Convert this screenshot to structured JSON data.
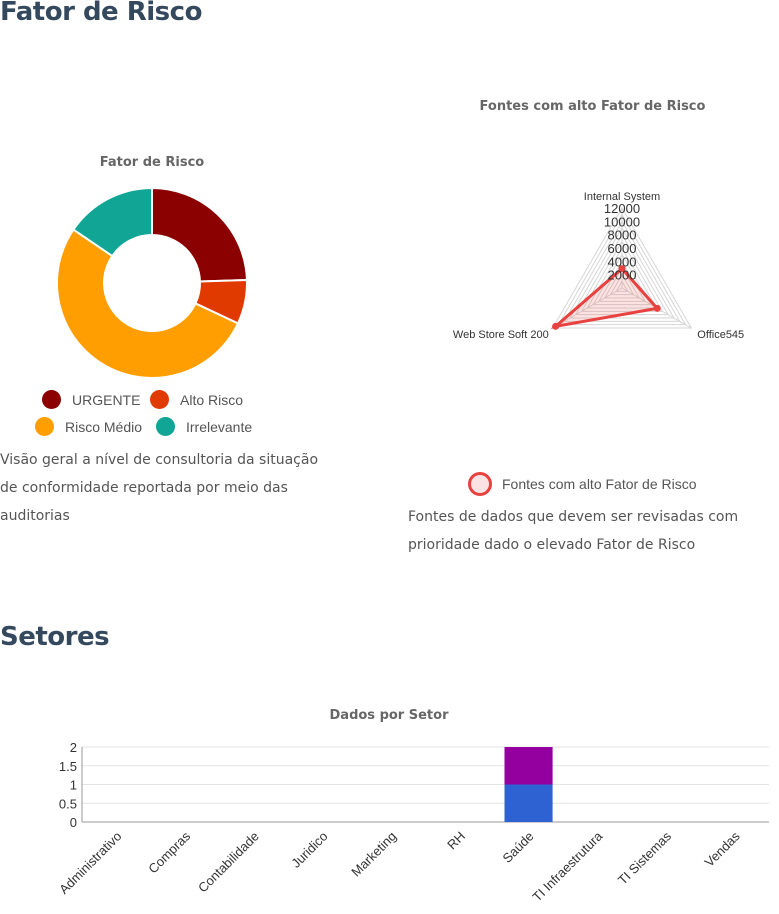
{
  "sections": {
    "risk_title": "Fator de Risco",
    "sectors_title": "Setores"
  },
  "donut": {
    "title": "Fator de Risco",
    "description": "Visão geral a nível de consultoria da situação de conformidade reportada por meio das auditorias",
    "legend": [
      {
        "label": "URGENTE",
        "color": "#8b0000"
      },
      {
        "label": "Alto Risco",
        "color": "#e03a00"
      },
      {
        "label": "Risco Médio",
        "color": "#ff9e00"
      },
      {
        "label": "Irrelevante",
        "color": "#11a596"
      }
    ]
  },
  "radar": {
    "title": "Fontes com alto Fator de Risco",
    "legend_label": "Fontes com alto Fator de Risco",
    "description": "Fontes de dados que devem ser revisadas com prioridade dado o elevado Fator de Risco"
  },
  "bars": {
    "title": "Dados por Setor"
  },
  "chart_data": [
    {
      "type": "pie",
      "title": "Fator de Risco",
      "categories": [
        "URGENTE",
        "Alto Risco",
        "Risco Médio",
        "Irrelevante"
      ],
      "values": [
        24.5,
        7.5,
        52.5,
        15.5
      ],
      "colors": [
        "#8b0000",
        "#e03a00",
        "#ff9e00",
        "#11a596"
      ]
    },
    {
      "type": "radar",
      "title": "Fontes com alto Fator de Risco",
      "categories": [
        "Internal System",
        "Office545",
        "Web Store Soft 200"
      ],
      "series": [
        {
          "name": "Fontes com alto Fator de Risco",
          "values": [
            2900,
            6100,
            11500
          ]
        }
      ],
      "ticks": [
        2000,
        4000,
        6000,
        8000,
        10000,
        12000
      ],
      "ylim": [
        0,
        12000
      ]
    },
    {
      "type": "bar",
      "stacked": true,
      "title": "Dados por Setor",
      "categories": [
        "Administrativo",
        "Compras",
        "Contabilidade",
        "Juridico",
        "Marketing",
        "RH",
        "Saúde",
        "TI Infraestrutura",
        "TI Sistemas",
        "Vendas"
      ],
      "series": [
        {
          "values": [
            0,
            0,
            0,
            0,
            0,
            0,
            1,
            0,
            0,
            0
          ],
          "color": "#2e62d2"
        },
        {
          "values": [
            0,
            0,
            0,
            0,
            0,
            0,
            1,
            0,
            0,
            0
          ],
          "color": "#9400a0"
        }
      ],
      "yticks": [
        "0",
        "0.5",
        "1",
        "1.5",
        "2"
      ],
      "ylim": [
        0,
        2
      ]
    }
  ]
}
